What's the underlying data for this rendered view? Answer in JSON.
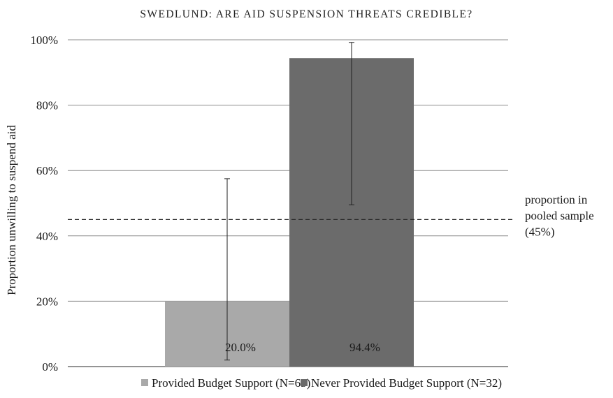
{
  "running_header": "SWEDLUND: ARE AID SUSPENSION THREATS CREDIBLE?",
  "chart_data": {
    "type": "bar",
    "title": "",
    "ylabel": "Proportion unwilling to suspend aid",
    "xlabel": "",
    "ylim": [
      0,
      100
    ],
    "yticks": [
      0,
      20,
      40,
      60,
      80,
      100
    ],
    "ytick_labels": [
      "0%",
      "20%",
      "40%",
      "60%",
      "80%",
      "100%"
    ],
    "grid": true,
    "legend_position": "bottom",
    "series": [
      {
        "name": "Provided Budget Support (N=63)",
        "value": 20.0,
        "value_label": "20.0%",
        "error_low": 2,
        "error_high": 57.5,
        "color": "#a9a9a9"
      },
      {
        "name": "Never Provided Budget Support (N=32)",
        "value": 94.4,
        "value_label": "94.4%",
        "error_low": 49.5,
        "error_high": 99.2,
        "color": "#6b6b6b"
      }
    ],
    "reference_line": {
      "value": 45,
      "style": "dashed",
      "label_lines": [
        "proportion in",
        "pooled sample",
        "(45%)"
      ]
    }
  }
}
